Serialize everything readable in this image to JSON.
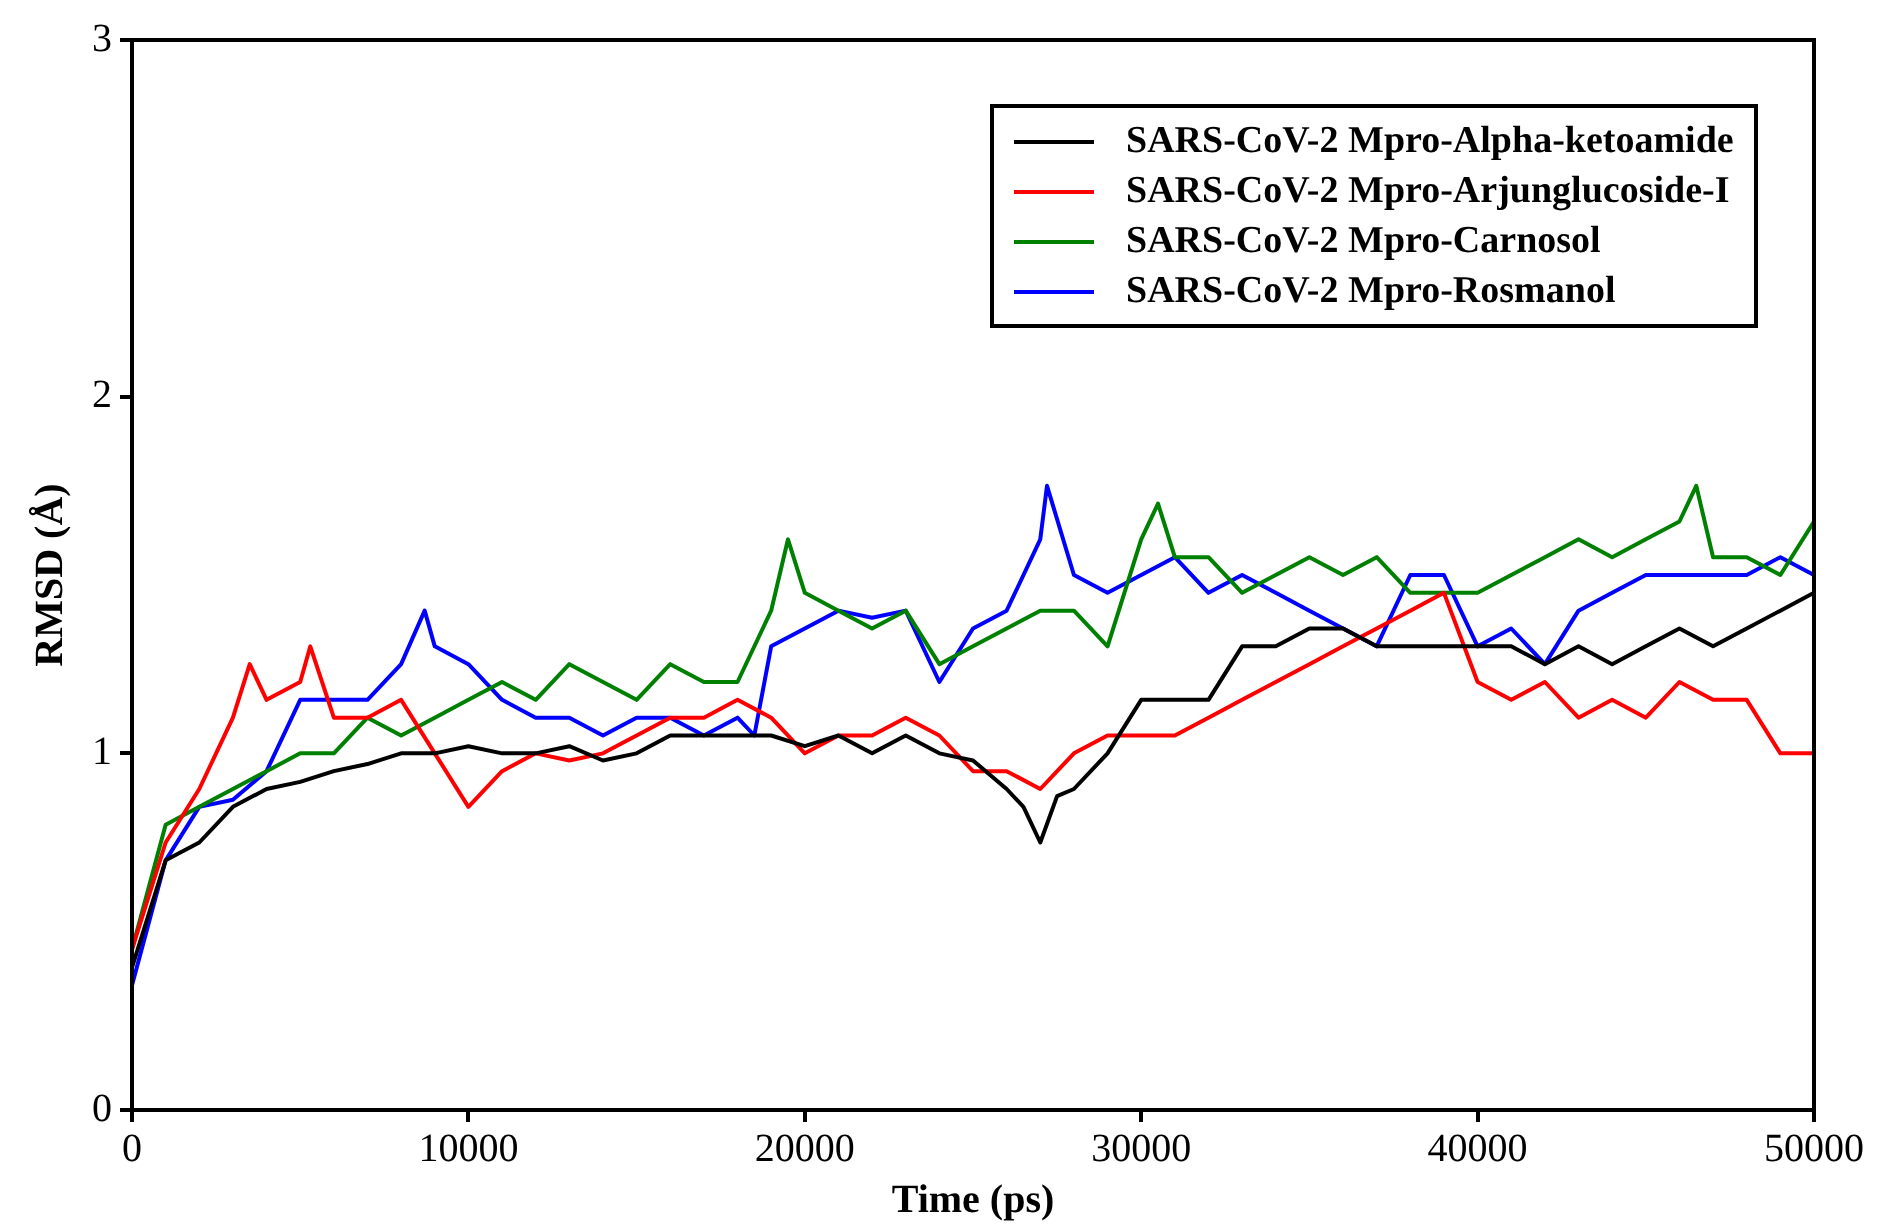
{
  "chart_data": {
    "type": "line",
    "xlabel": "Time (ps)",
    "ylabel": "RMSD (Å)",
    "xlim": [
      0,
      50000
    ],
    "xticks": [
      0,
      10000,
      20000,
      30000,
      40000,
      50000
    ],
    "ylim": [
      0,
      3
    ],
    "yticks": [
      0,
      1,
      2,
      3
    ],
    "grid": false,
    "legend": "top right",
    "marker": "none",
    "line_style": "solid",
    "series": [
      {
        "name": "SARS-CoV-2 Mpro-Alpha-ketoamide",
        "color": "#000000",
        "x": [
          0,
          1000,
          2000,
          3000,
          4000,
          5000,
          6000,
          7000,
          8000,
          9000,
          10000,
          11000,
          12000,
          13000,
          14000,
          15000,
          16000,
          17000,
          18000,
          19000,
          20000,
          21000,
          22000,
          23000,
          24000,
          25000,
          26000,
          26500,
          27000,
          27500,
          28000,
          29000,
          30000,
          31000,
          32000,
          33000,
          34000,
          35000,
          36000,
          37000,
          38000,
          39000,
          40000,
          41000,
          42000,
          43000,
          44000,
          45000,
          46000,
          47000,
          48000,
          49000,
          50000
        ],
        "values": [
          0.4,
          0.7,
          0.75,
          0.85,
          0.9,
          0.92,
          0.95,
          0.97,
          1.0,
          1.0,
          1.02,
          1.0,
          1.0,
          1.02,
          0.98,
          1.0,
          1.05,
          1.05,
          1.05,
          1.05,
          1.02,
          1.05,
          1.0,
          1.05,
          1.0,
          0.98,
          0.9,
          0.85,
          0.75,
          0.88,
          0.9,
          1.0,
          1.15,
          1.15,
          1.15,
          1.3,
          1.3,
          1.35,
          1.35,
          1.3,
          1.3,
          1.3,
          1.3,
          1.3,
          1.25,
          1.3,
          1.25,
          1.3,
          1.35,
          1.3,
          1.35,
          1.4,
          1.45
        ]
      },
      {
        "name": "SARS-CoV-2 Mpro-Arjunglucoside-I",
        "color": "#ff0000",
        "x": [
          0,
          1000,
          2000,
          3000,
          3500,
          4000,
          5000,
          5300,
          6000,
          7000,
          8000,
          9000,
          10000,
          11000,
          12000,
          13000,
          14000,
          15000,
          16000,
          17000,
          18000,
          19000,
          20000,
          21000,
          22000,
          23000,
          24000,
          25000,
          26000,
          27000,
          28000,
          29000,
          30000,
          31000,
          32000,
          33000,
          34000,
          35000,
          36000,
          37000,
          38000,
          39000,
          40000,
          41000,
          42000,
          43000,
          44000,
          45000,
          46000,
          47000,
          48000,
          49000,
          50000
        ],
        "values": [
          0.45,
          0.75,
          0.9,
          1.1,
          1.25,
          1.15,
          1.2,
          1.3,
          1.1,
          1.1,
          1.15,
          1.0,
          0.85,
          0.95,
          1.0,
          0.98,
          1.0,
          1.05,
          1.1,
          1.1,
          1.15,
          1.1,
          1.0,
          1.05,
          1.05,
          1.1,
          1.05,
          0.95,
          0.95,
          0.9,
          1.0,
          1.05,
          1.05,
          1.05,
          1.1,
          1.15,
          1.2,
          1.25,
          1.3,
          1.35,
          1.4,
          1.45,
          1.2,
          1.15,
          1.2,
          1.1,
          1.15,
          1.1,
          1.2,
          1.15,
          1.15,
          1.0,
          1.0
        ]
      },
      {
        "name": "SARS-CoV-2 Mpro-Carnosol",
        "color": "#008000",
        "x": [
          0,
          1000,
          2000,
          3000,
          4000,
          5000,
          6000,
          7000,
          8000,
          9000,
          10000,
          11000,
          12000,
          13000,
          14000,
          15000,
          16000,
          17000,
          18000,
          19000,
          19500,
          20000,
          21000,
          22000,
          23000,
          24000,
          25000,
          26000,
          27000,
          28000,
          29000,
          30000,
          30500,
          31000,
          32000,
          33000,
          34000,
          35000,
          36000,
          37000,
          38000,
          39000,
          40000,
          41000,
          42000,
          43000,
          44000,
          45000,
          46000,
          46500,
          47000,
          48000,
          49000,
          50000
        ],
        "values": [
          0.45,
          0.8,
          0.85,
          0.9,
          0.95,
          1.0,
          1.0,
          1.1,
          1.05,
          1.1,
          1.15,
          1.2,
          1.15,
          1.25,
          1.2,
          1.15,
          1.25,
          1.2,
          1.2,
          1.4,
          1.6,
          1.45,
          1.4,
          1.35,
          1.4,
          1.25,
          1.3,
          1.35,
          1.4,
          1.4,
          1.3,
          1.6,
          1.7,
          1.55,
          1.55,
          1.45,
          1.5,
          1.55,
          1.5,
          1.55,
          1.45,
          1.45,
          1.45,
          1.5,
          1.55,
          1.6,
          1.55,
          1.6,
          1.65,
          1.75,
          1.55,
          1.55,
          1.5,
          1.65
        ]
      },
      {
        "name": "SARS-CoV-2 Mpro-Rosmanol",
        "color": "#0000ff",
        "x": [
          0,
          1000,
          2000,
          3000,
          4000,
          5000,
          6000,
          7000,
          8000,
          8700,
          9000,
          10000,
          11000,
          12000,
          13000,
          14000,
          15000,
          16000,
          17000,
          18000,
          18500,
          19000,
          20000,
          21000,
          22000,
          23000,
          24000,
          25000,
          26000,
          27000,
          27200,
          28000,
          29000,
          30000,
          31000,
          32000,
          33000,
          34000,
          35000,
          36000,
          37000,
          38000,
          39000,
          40000,
          41000,
          42000,
          43000,
          44000,
          45000,
          46000,
          47000,
          48000,
          49000,
          50000
        ],
        "values": [
          0.35,
          0.7,
          0.85,
          0.87,
          0.95,
          1.15,
          1.15,
          1.15,
          1.25,
          1.4,
          1.3,
          1.25,
          1.15,
          1.1,
          1.1,
          1.05,
          1.1,
          1.1,
          1.05,
          1.1,
          1.05,
          1.3,
          1.35,
          1.4,
          1.38,
          1.4,
          1.2,
          1.35,
          1.4,
          1.6,
          1.75,
          1.5,
          1.45,
          1.5,
          1.55,
          1.45,
          1.5,
          1.45,
          1.4,
          1.35,
          1.3,
          1.5,
          1.5,
          1.3,
          1.35,
          1.25,
          1.4,
          1.45,
          1.5,
          1.5,
          1.5,
          1.5,
          1.55,
          1.5
        ]
      }
    ]
  }
}
